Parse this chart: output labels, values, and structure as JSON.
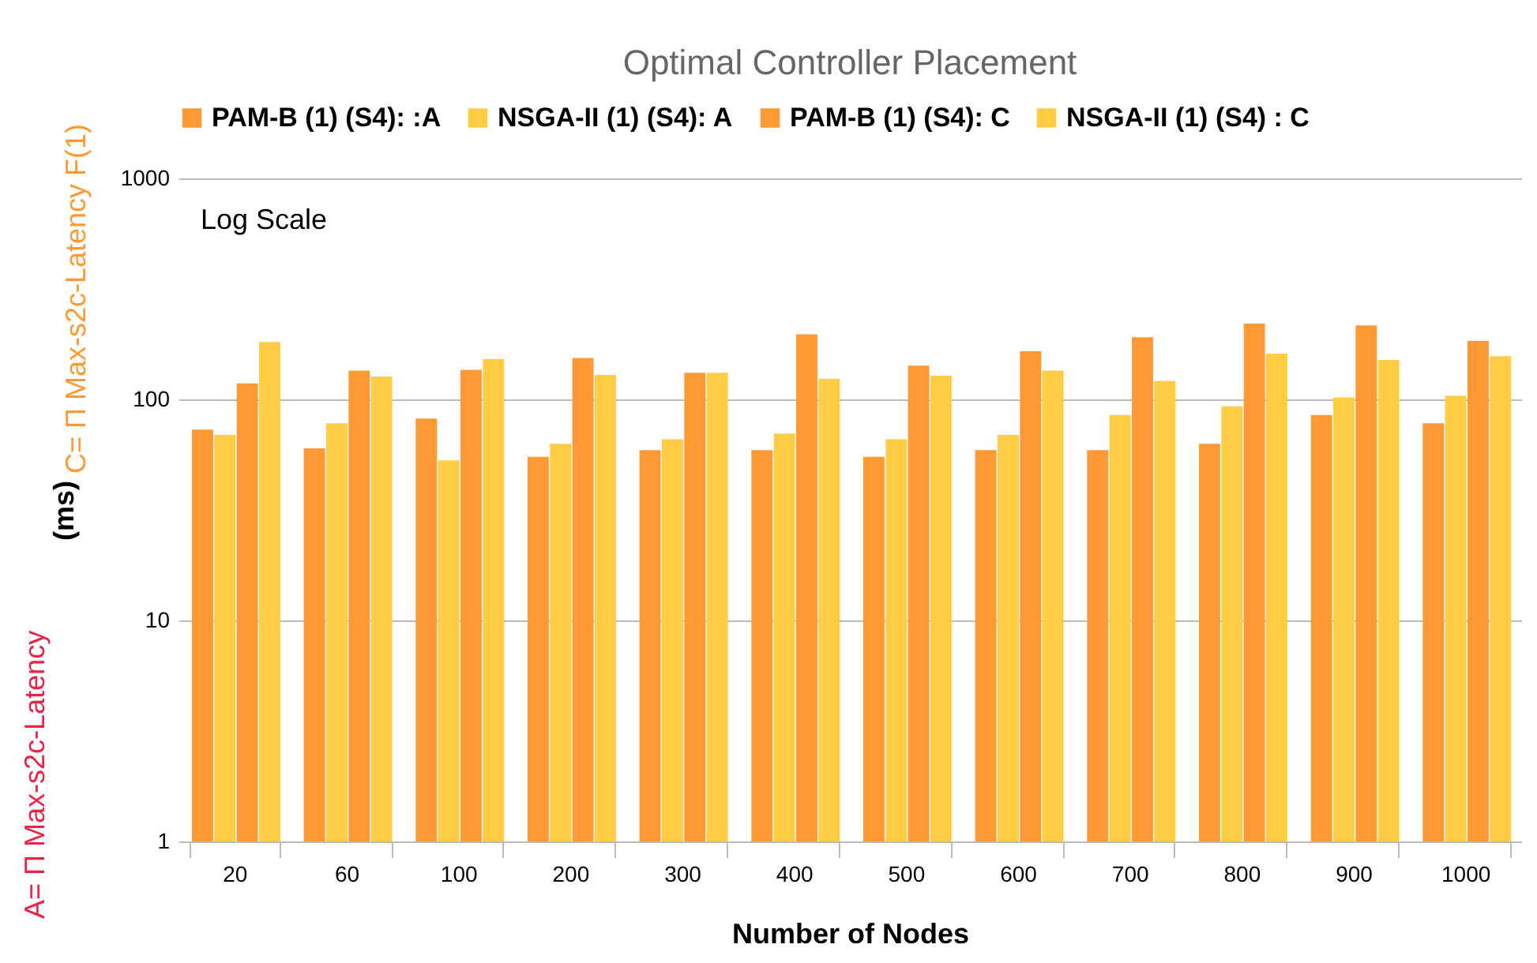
{
  "chart_data": {
    "type": "bar",
    "title": "Optimal Controller Placement",
    "xlabel": "Number of Nodes",
    "ylabel": "(ms)",
    "annotations": [
      "Log Scale",
      "A= Π Max-s2c-Latency",
      "C= Π Max-s2c-Latency F(1)"
    ],
    "categories": [
      "20",
      "60",
      "100",
      "200",
      "300",
      "400",
      "500",
      "600",
      "700",
      "800",
      "900",
      "1000"
    ],
    "series": [
      {
        "name": "PAM-B (1) (S4): :A",
        "color": "#ff9933",
        "values": [
          73,
          60,
          82,
          55,
          59,
          59,
          55,
          59,
          59,
          63,
          85,
          78
        ]
      },
      {
        "name": "NSGA-II (1) (S4): A",
        "color": "#ffcc44",
        "values": [
          69,
          78,
          53,
          63,
          66,
          70,
          66,
          69,
          85,
          93,
          102,
          104
        ]
      },
      {
        "name": "PAM-B (1) (S4): C",
        "color": "#ff9933",
        "values": [
          118,
          135,
          136,
          154,
          132,
          197,
          142,
          165,
          191,
          220,
          216,
          184
        ]
      },
      {
        "name": "NSGA-II (1) (S4) : C",
        "color": "#ffcc44",
        "values": [
          182,
          127,
          152,
          129,
          132,
          124,
          128,
          135,
          121,
          161,
          151,
          157
        ]
      }
    ],
    "log": "y",
    "ylim": [
      1,
      1000
    ],
    "yticks": [
      1,
      10,
      100,
      1000
    ],
    "grid": "y",
    "legend": "top"
  }
}
